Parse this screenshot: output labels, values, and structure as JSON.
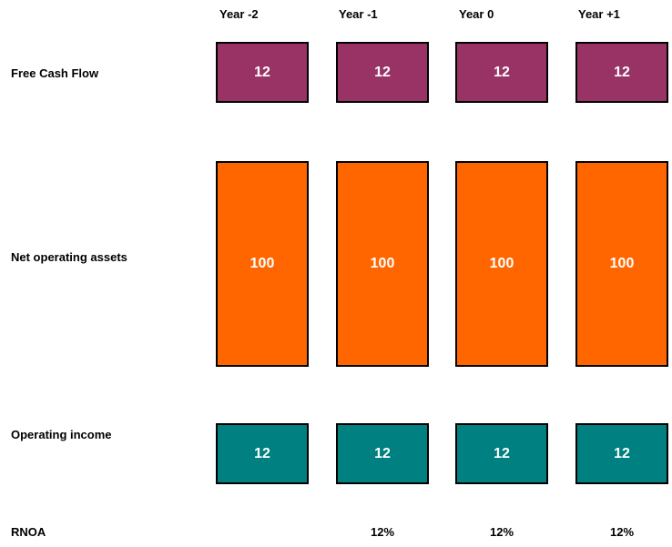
{
  "years": [
    "Year -2",
    "Year -1",
    "Year 0",
    "Year +1"
  ],
  "rows": {
    "free_cash_flow": {
      "label": "Free Cash Flow",
      "values": [
        "12",
        "12",
        "12",
        "12"
      ],
      "color": "#993366"
    },
    "net_operating_assets": {
      "label": "Net operating assets",
      "values": [
        "100",
        "100",
        "100",
        "100"
      ],
      "color": "#ff6600"
    },
    "operating_income": {
      "label": "Operating income",
      "values": [
        "12",
        "12",
        "12",
        "12"
      ],
      "color": "#008080"
    },
    "rnoa": {
      "label": "RNOA",
      "values": [
        "",
        "12%",
        "12%",
        "12%"
      ]
    }
  }
}
